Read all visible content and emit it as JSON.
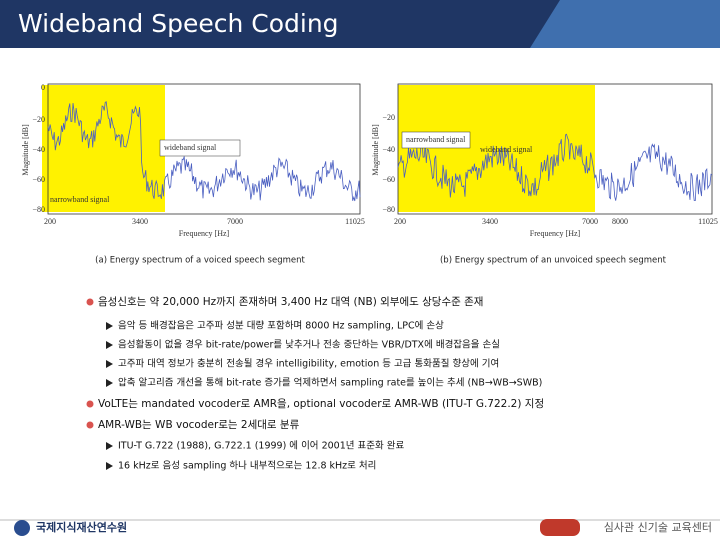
{
  "header": {
    "title": "Wideband Speech Coding"
  },
  "figures": [
    {
      "y_label": "Magnitude [dB]",
      "x_label": "Frequency [Hz]",
      "yticks": [
        "0",
        "−20",
        "−40",
        "−60",
        "−80"
      ],
      "xticks": [
        "200",
        "3400",
        "7000",
        "11025"
      ],
      "inner_label": "wideband signal",
      "band_label": "narrowband signal",
      "caption": "(a) Energy spectrum of a voiced speech segment"
    },
    {
      "y_label": "Magnitude [dB]",
      "x_label": "Frequency [Hz]",
      "yticks": [
        "−20",
        "−40",
        "−60",
        "−80"
      ],
      "xticks": [
        "200",
        "3400",
        "7000",
        "8000",
        "11025"
      ],
      "inner_label": "narrowband signal",
      "band_label": "wideband signal",
      "caption": "(b) Energy spectrum of an unvoiced speech segment"
    }
  ],
  "bullets": [
    {
      "text": "음성신호는 약 20,000 Hz까지 존재하며 3,400 Hz 대역 (NB) 외부에도 상당수준 존재",
      "subs": [
        "음악 등 배경잡음은 고주파 성분 대량 포함하며 8000 Hz sampling, LPC에 손상",
        "음성활동이 없을 경우 bit-rate/power를 낮추거나 전송 중단하는 VBR/DTX에 배경잡음을 손실",
        "고주파 대역 정보가 충분히 전송될 경우 intelligibility, emotion 등 고급 통화품질 향상에 기여",
        "압축 알고리즘 개선을 통해 bit-rate 증가를 억제하면서 sampling rate를 높이는 추세 (NB→WB→SWB)"
      ]
    },
    {
      "text": "VoLTE는 mandated vocoder로 AMR을, optional vocoder로 AMR-WB (ITU-T G.722.2) 지정",
      "subs": []
    },
    {
      "text": "AMR-WB는 WB vocoder로는 2세대로 분류",
      "subs": [
        "ITU-T G.722 (1988), G.722.1 (1999) 에 이어 2001년 표준화 완료",
        "16 kHz로 음성 sampling 하나 내부적으로는 12.8 kHz로 처리"
      ]
    }
  ],
  "footer": {
    "left": "국제지식재산연수원",
    "right": "심사관 신기술 교육센터"
  }
}
